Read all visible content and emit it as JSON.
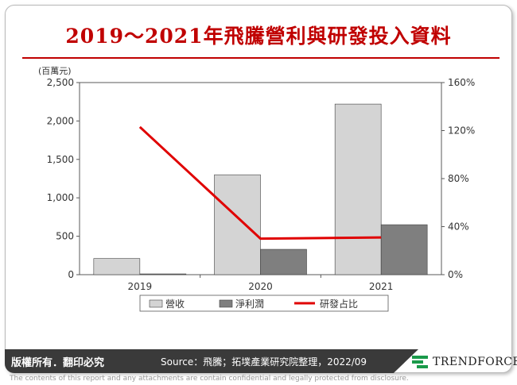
{
  "title": "2019～2021年飛騰營利與研發投入資料",
  "footer": {
    "rights": "版權所有．翻印必究",
    "source": "Source：飛騰；拓墣產業研究院整理，2022/09",
    "logo": "TRENDFORCE",
    "disclaimer": "The contents of this report and any attachments are contain confidential and legally protected from disclosure."
  },
  "colors": {
    "title": "#c00000",
    "revenue": "#d4d4d4",
    "net_profit": "#7f7f7f",
    "rd_ratio": "#e00000"
  },
  "chart_data": {
    "type": "bar",
    "categories": [
      "2019",
      "2020",
      "2021"
    ],
    "series": [
      {
        "name": "營收",
        "type": "bar",
        "axis": "left",
        "values": [
          210,
          1300,
          2220
        ]
      },
      {
        "name": "淨利潤",
        "type": "bar",
        "axis": "left",
        "values": [
          10,
          330,
          650
        ]
      },
      {
        "name": "研發占比",
        "type": "line",
        "axis": "right",
        "values": [
          123,
          30,
          31
        ]
      }
    ],
    "y_left": {
      "unit_label": "(百萬元)",
      "min": 0,
      "max": 2500,
      "ticks": [
        0,
        500,
        1000,
        1500,
        2000,
        2500
      ],
      "tick_labels": [
        "0",
        "500",
        "1,000",
        "1,500",
        "2,000",
        "2,500"
      ]
    },
    "y_right": {
      "min": 0,
      "max": 160,
      "ticks": [
        0,
        40,
        80,
        120,
        160
      ],
      "tick_labels": [
        "0%",
        "40%",
        "80%",
        "120%",
        "160%"
      ]
    },
    "legend": [
      "營收",
      "淨利潤",
      "研發占比"
    ],
    "legend_position": "bottom",
    "grid": false
  }
}
